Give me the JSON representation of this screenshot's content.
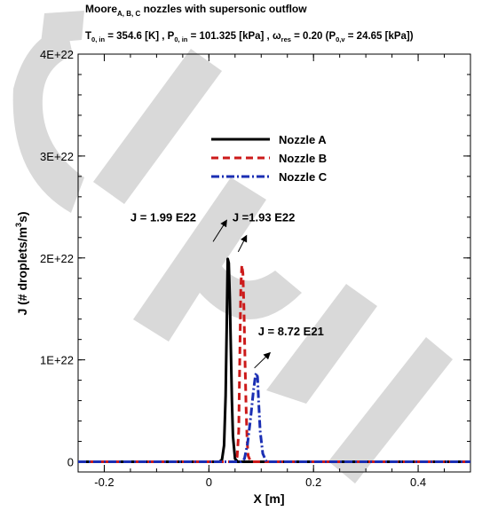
{
  "title": {
    "line1_main": "Moore",
    "line1_sub": "A, B, C",
    "line1_rest": " nozzles with supersonic outflow",
    "line2_t": "T",
    "line2_t_sub": "0, in",
    "line2_t_val": " = 354.6 [K] ,  P",
    "line2_p_sub": "0, in",
    "line2_p_val": " = 101.325 [kPa] , ",
    "line2_omega": "ω",
    "line2_omega_sub": "res",
    "line2_omega_val": " = 0.20 (P",
    "line2_pv_sub": "0,v",
    "line2_pv_val": " = 24.65 [kPa])"
  },
  "watermark": "CERT",
  "colors": {
    "nozzle_a": "#000000",
    "nozzle_b": "#cc1a1a",
    "nozzle_c": "#1a2eb3",
    "watermark": "#d9d9d9"
  },
  "chart_data": {
    "type": "line",
    "xlabel": "X [m]",
    "ylabel_main": "J (# droplets/m",
    "ylabel_sup": "3",
    "ylabel_end": "s)",
    "xlim": [
      -0.25,
      0.5
    ],
    "ylim": [
      -1e+21,
      4e+22
    ],
    "xticks": [
      -0.2,
      0,
      0.2,
      0.4
    ],
    "xtick_labels": [
      "-0.2",
      "0",
      "0.2",
      "0.4"
    ],
    "yticks": [
      0,
      1e+22,
      2e+22,
      3e+22,
      4e+22
    ],
    "ytick_labels": [
      "0",
      "1E+22",
      "2E+22",
      "3E+22",
      "4E+22"
    ],
    "grid": false,
    "legend_position": "upper-middle",
    "series": [
      {
        "name": "Nozzle A",
        "style": "solid",
        "x": [
          -0.25,
          0.0,
          0.02,
          0.025,
          0.029,
          0.032,
          0.034,
          0.036,
          0.038,
          0.04,
          0.042,
          0.044,
          0.046,
          0.05,
          0.055,
          0.5
        ],
        "y": [
          0,
          0,
          0,
          2e+20,
          1.6e+21,
          6.5e+21,
          1.3e+22,
          1.99e+22,
          1.95e+22,
          1.6e+22,
          1.1e+22,
          6e+21,
          2.5e+21,
          3e+20,
          0,
          0
        ]
      },
      {
        "name": "Nozzle B",
        "style": "dashed",
        "x": [
          -0.25,
          0.0,
          0.05,
          0.054,
          0.057,
          0.059,
          0.061,
          0.063,
          0.065,
          0.067,
          0.069,
          0.071,
          0.073,
          0.075,
          0.08,
          0.5
        ],
        "y": [
          0,
          0,
          0,
          5e+20,
          3e+21,
          1e+22,
          1.7e+22,
          1.93e+22,
          1.85e+22,
          1.5e+22,
          1e+22,
          5.5e+21,
          2.2e+21,
          6e+20,
          0,
          0
        ]
      },
      {
        "name": "Nozzle C",
        "style": "dashdot",
        "x": [
          -0.25,
          0.0,
          0.062,
          0.068,
          0.074,
          0.08,
          0.085,
          0.089,
          0.091,
          0.093,
          0.095,
          0.098,
          0.103,
          0.11,
          0.5
        ],
        "y": [
          0,
          0,
          0,
          3e+20,
          1.8e+21,
          4.4e+21,
          6.9e+21,
          8.5e+21,
          8.72e+21,
          8.3e+21,
          6e+21,
          3e+21,
          8e+20,
          0,
          0
        ]
      }
    ],
    "annotations": [
      {
        "text": "J = 1.99 E22",
        "x": -0.15,
        "y": 2.36e+22,
        "arrow_from": [
          0.008,
          2.16e+22
        ],
        "arrow_to": [
          0.034,
          2.37e+22
        ]
      },
      {
        "text": "J =1.93 E22",
        "x": 0.045,
        "y": 2.36e+22,
        "arrow_from": [
          0.056,
          2.06e+22
        ],
        "arrow_to": [
          0.072,
          2.22e+22
        ]
      },
      {
        "text": "J = 8.72 E21",
        "x": 0.094,
        "y": 1.24e+22,
        "arrow_from": [
          0.087,
          9.2e+21
        ],
        "arrow_to": [
          0.117,
          1.07e+22
        ]
      }
    ]
  }
}
